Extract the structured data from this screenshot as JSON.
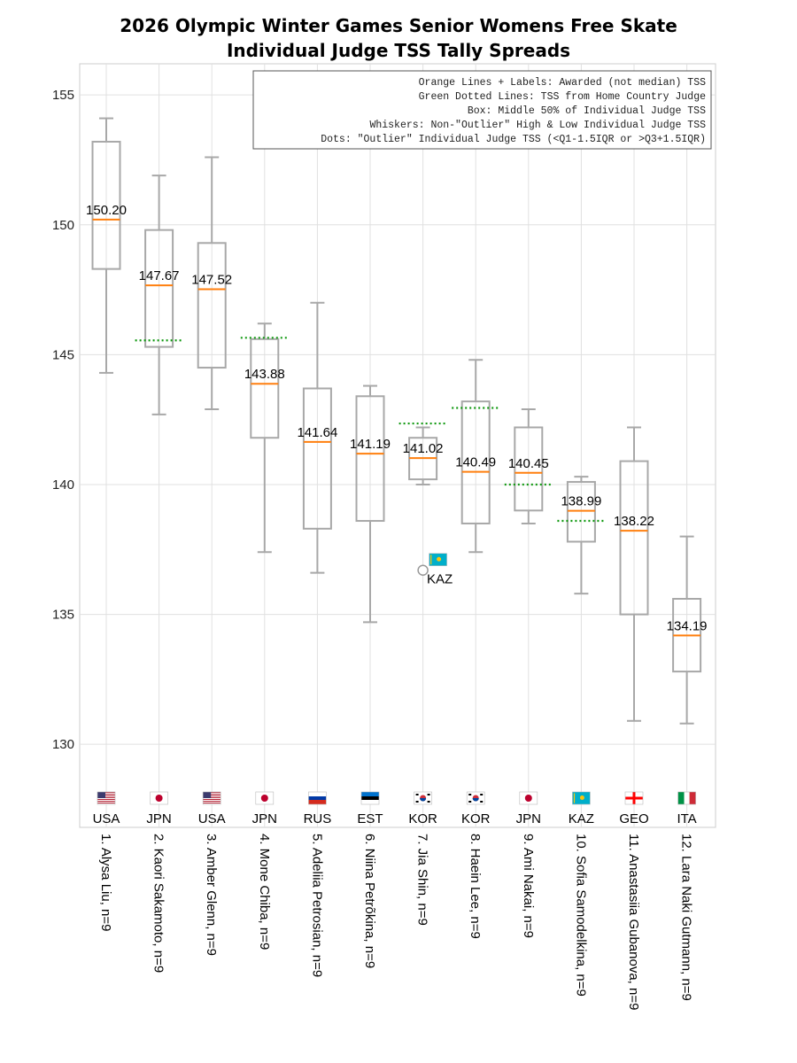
{
  "chart_data": {
    "type": "boxplot",
    "title_lines": [
      "2026 Olympic Winter Games Senior Womens Free Skate",
      "Individual Judge TSS Tally Spreads"
    ],
    "ylim": [
      126.8,
      156.2
    ],
    "yticks": [
      130,
      135,
      140,
      145,
      150,
      155
    ],
    "legend_lines": [
      "Orange Lines + Labels: Awarded (not median) TSS",
      "Green Dotted Lines: TSS from Home Country Judge",
      "Box: Middle 50% of Individual Judge TSS",
      "Whiskers: Non-\"Outlier\" High & Low Individual Judge TSS",
      "Dots: \"Outlier\" Individual Judge TSS (<Q1-1.5IQR or >Q3+1.5IQR)"
    ],
    "colors": {
      "box": "#a8a8a8",
      "awarded": "#ff7f0e",
      "home": "#119911",
      "grid": "#e0e0e0"
    },
    "skaters": [
      {
        "label": "1. Alysa Liu, n=9",
        "country": "USA",
        "flag": "usa",
        "low": 144.3,
        "q1": 148.3,
        "q3": 153.2,
        "high": 154.1,
        "awarded": 150.2,
        "awarded_label": "150.20",
        "home": null
      },
      {
        "label": "2. Kaori Sakamoto, n=9",
        "country": "JPN",
        "flag": "jpn",
        "low": 142.7,
        "q1": 145.3,
        "q3": 149.8,
        "high": 151.9,
        "awarded": 147.67,
        "awarded_label": "147.67",
        "home": 145.55
      },
      {
        "label": "3. Amber Glenn, n=9",
        "country": "USA",
        "flag": "usa",
        "low": 142.9,
        "q1": 144.5,
        "q3": 149.3,
        "high": 152.6,
        "awarded": 147.52,
        "awarded_label": "147.52",
        "home": null
      },
      {
        "label": "4. Mone Chiba, n=9",
        "country": "JPN",
        "flag": "jpn",
        "low": 137.4,
        "q1": 141.8,
        "q3": 145.6,
        "high": 146.2,
        "awarded": 143.88,
        "awarded_label": "143.88",
        "home": 145.65
      },
      {
        "label": "5. Adeliia Petrosian, n=9",
        "country": "RUS",
        "flag": "rus",
        "low": 136.6,
        "q1": 138.3,
        "q3": 143.7,
        "high": 147.0,
        "awarded": 141.64,
        "awarded_label": "141.64",
        "home": null
      },
      {
        "label": "6. Niina Petrõkina, n=9",
        "country": "EST",
        "flag": "est",
        "low": 134.7,
        "q1": 138.6,
        "q3": 143.4,
        "high": 143.8,
        "awarded": 141.19,
        "awarded_label": "141.19",
        "home": null
      },
      {
        "label": "7. Jia Shin, n=9",
        "country": "KOR",
        "flag": "kor",
        "low": 140.0,
        "q1": 140.2,
        "q3": 141.8,
        "high": 142.2,
        "awarded": 141.02,
        "awarded_label": "141.02",
        "home": 142.35,
        "outliers": [
          {
            "value": 136.7,
            "label": "KAZ",
            "flag": "kaz"
          }
        ]
      },
      {
        "label": "8. Haein Lee, n=9",
        "country": "KOR",
        "flag": "kor",
        "low": 137.4,
        "q1": 138.5,
        "q3": 143.2,
        "high": 144.8,
        "awarded": 140.49,
        "awarded_label": "140.49",
        "home": 142.95
      },
      {
        "label": "9. Ami Nakai, n=9",
        "country": "JPN",
        "flag": "jpn",
        "low": 138.5,
        "q1": 139.0,
        "q3": 142.2,
        "high": 142.9,
        "awarded": 140.45,
        "awarded_label": "140.45",
        "home": 140.0
      },
      {
        "label": "10. Sofia Samodelkina, n=9",
        "country": "KAZ",
        "flag": "kaz",
        "low": 135.8,
        "q1": 137.8,
        "q3": 140.1,
        "high": 140.3,
        "awarded": 138.99,
        "awarded_label": "138.99",
        "home": 138.6
      },
      {
        "label": "11. Anastasiia Gubanova, n=9",
        "country": "GEO",
        "flag": "geo",
        "low": 130.9,
        "q1": 135.0,
        "q3": 140.9,
        "high": 142.2,
        "awarded": 138.22,
        "awarded_label": "138.22",
        "home": null
      },
      {
        "label": "12. Lara Naki Gutmann, n=9",
        "country": "ITA",
        "flag": "ita",
        "low": 130.8,
        "q1": 132.8,
        "q3": 135.6,
        "high": 138.0,
        "awarded": 134.19,
        "awarded_label": "134.19",
        "home": null
      }
    ]
  }
}
